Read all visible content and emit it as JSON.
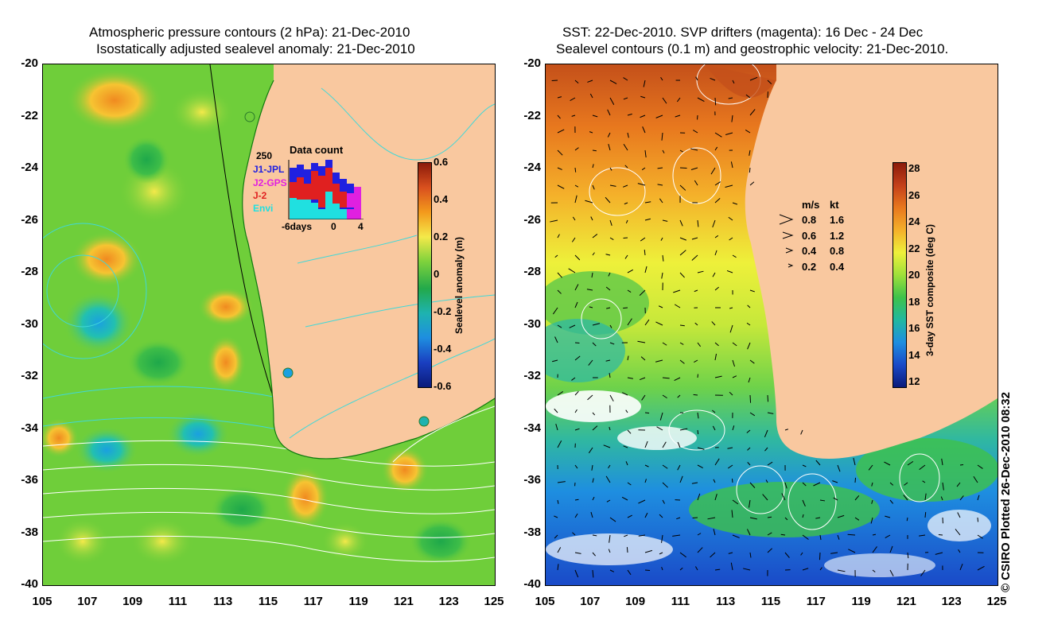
{
  "left_panel": {
    "title_line1": "Atmospheric pressure contours (2 hPa): 21-Dec-2010",
    "title_line2": "Isostatically adjusted sealevel anomaly: 21-Dec-2010",
    "colorbar": {
      "label": "Sealevel anomaly (m)",
      "ticks": [
        "0.6",
        "0.4",
        "0.2",
        "0",
        "-0.2",
        "-0.4",
        "-0.6"
      ],
      "colors": [
        "#8b1a0a",
        "#d9501e",
        "#f39a1c",
        "#f4e94a",
        "#7ed23c",
        "#22a94a",
        "#1eb3b0",
        "#1e8ee0",
        "#1a3fc0",
        "#0a1a7a"
      ]
    },
    "data_count": {
      "title": "Data count",
      "max_label": "250",
      "x_labels": [
        "-6days",
        "0",
        "4"
      ],
      "missions": [
        {
          "name": "J1-JPL",
          "color": "#2020e0"
        },
        {
          "name": "J2-GPS",
          "color": "#e020e0"
        },
        {
          "name": "J-2",
          "color": "#e02020"
        },
        {
          "name": "Envi",
          "color": "#20e0e0"
        }
      ]
    }
  },
  "right_panel": {
    "title_line1": "SST: 22-Dec-2010. SVP drifters (magenta): 16 Dec - 24 Dec",
    "title_line2": "Sealevel contours (0.1 m) and geostrophic velocity: 21-Dec-2010.",
    "colorbar": {
      "label": "3-day SST composite (deg C)",
      "ticks": [
        "28",
        "26",
        "24",
        "22",
        "20",
        "18",
        "16",
        "14",
        "12"
      ],
      "colors": [
        "#8b1a0a",
        "#c4401a",
        "#e8781e",
        "#f4b02a",
        "#eef03a",
        "#9ee03a",
        "#3ec24a",
        "#20b8a0",
        "#1e8ee0",
        "#1a4ac8",
        "#0a1a7a"
      ]
    },
    "velocity_legend": {
      "headers": [
        "m/s",
        "kt"
      ],
      "rows": [
        {
          "ms": "0.8",
          "kt": "1.6"
        },
        {
          "ms": "0.6",
          "kt": "1.2"
        },
        {
          "ms": "0.4",
          "kt": "0.8"
        },
        {
          "ms": "0.2",
          "kt": "0.4"
        }
      ]
    }
  },
  "axes": {
    "lat_labels": [
      "-20",
      "-22",
      "-24",
      "-26",
      "-28",
      "-30",
      "-32",
      "-34",
      "-36",
      "-38",
      "-40"
    ],
    "lon_labels": [
      "105",
      "107",
      "109",
      "111",
      "113",
      "115",
      "117",
      "119",
      "121",
      "123",
      "125"
    ]
  },
  "colors": {
    "land": "#f9c89f",
    "ocean_left": "#6fce3a",
    "ocean_right": "#f0d54a"
  },
  "copyright": "© CSIRO Plotted 26-Dec-2010 08:32"
}
